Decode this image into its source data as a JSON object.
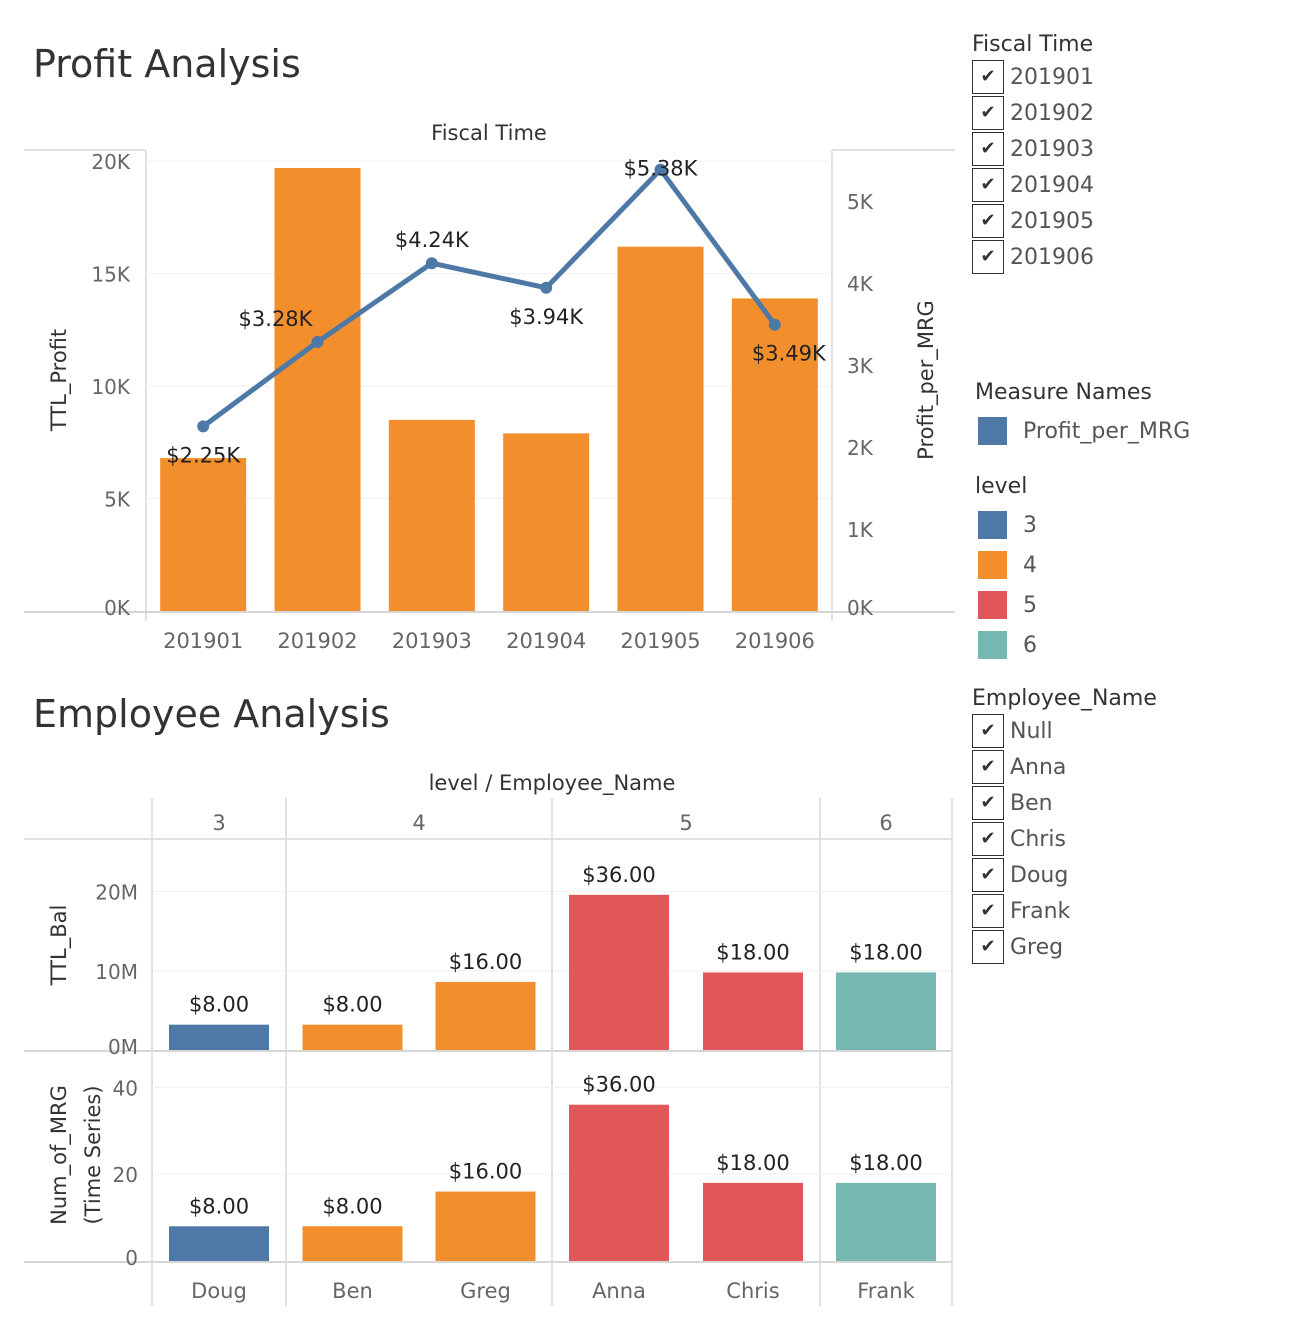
{
  "profit_section": {
    "title": "Profit Analysis",
    "header": "Fiscal Time"
  },
  "employee_section": {
    "title": "Employee Analysis",
    "header": "level / Employee_Name"
  },
  "fiscal_filter": {
    "title": "Fiscal Time",
    "items": [
      "201901",
      "201902",
      "201903",
      "201904",
      "201905",
      "201906"
    ]
  },
  "measure_legend": {
    "title": "Measure Names",
    "items": [
      {
        "label": "Profit_per_MRG",
        "color": "#4e79a7"
      }
    ]
  },
  "level_legend": {
    "title": "level",
    "items": [
      {
        "label": "3",
        "color": "#4e79a7"
      },
      {
        "label": "4",
        "color": "#f28e2b"
      },
      {
        "label": "5",
        "color": "#e15759"
      },
      {
        "label": "6",
        "color": "#76b7b2"
      }
    ]
  },
  "employee_filter": {
    "title": "Employee_Name",
    "items": [
      "Null",
      "Anna",
      "Ben",
      "Chris",
      "Doug",
      "Frank",
      "Greg"
    ]
  },
  "chart_data": [
    {
      "type": "bar",
      "title": "Profit Analysis",
      "xlabel": "Fiscal Time",
      "ylabel": "TTL_Profit",
      "categories": [
        "201901",
        "201902",
        "201903",
        "201904",
        "201905",
        "201906"
      ],
      "values": [
        6800,
        19700,
        8500,
        7900,
        16200,
        13900
      ],
      "ylim": [
        0,
        20500
      ],
      "yticks": [
        "0K",
        "5K",
        "10K",
        "15K",
        "20K"
      ],
      "color": "#f28e2b",
      "line_series": {
        "name": "Profit_per_MRG",
        "axis_label": "Profit_per_MRG",
        "values": [
          2250,
          3280,
          4240,
          3940,
          5380,
          3490
        ],
        "labels": [
          "$2.25K",
          "$3.28K",
          "$4.24K",
          "$3.94K",
          "$5.38K",
          "$3.49K"
        ],
        "ylim": [
          0,
          5620
        ],
        "yticks": [
          "0K",
          "1K",
          "2K",
          "3K",
          "4K",
          "5K"
        ],
        "color": "#4e79a7"
      },
      "grid": true
    },
    {
      "type": "bar",
      "title": "Employee Analysis",
      "xlabel": "level / Employee_Name",
      "groups": [
        {
          "level": "3",
          "employees": [
            "Doug"
          ]
        },
        {
          "level": "4",
          "employees": [
            "Ben",
            "Greg"
          ]
        },
        {
          "level": "5",
          "employees": [
            "Anna",
            "Chris"
          ]
        },
        {
          "level": "6",
          "employees": [
            "Frank"
          ]
        }
      ],
      "categories": [
        "Doug",
        "Ben",
        "Greg",
        "Anna",
        "Chris",
        "Frank"
      ],
      "levels": [
        "3",
        "4",
        "4",
        "5",
        "5",
        "6"
      ],
      "series": [
        {
          "name": "TTL_Bal",
          "axis_label": "TTL_Bal",
          "values": [
            3200000,
            3200000,
            8600000,
            19600000,
            9800000,
            9800000
          ],
          "labels": [
            "$8.00",
            "$8.00",
            "$16.00",
            "$36.00",
            "$18.00",
            "$18.00"
          ],
          "ylim": [
            0,
            24000000
          ],
          "ytick_values": [
            0,
            10000000,
            20000000
          ],
          "yticks": [
            "0M",
            "10M",
            "20M"
          ]
        },
        {
          "name": "Num_of_MRG (Time Series)",
          "axis_label": [
            "Num_of_MRG",
            "(Time Series)"
          ],
          "values": [
            8,
            8,
            16,
            36,
            18,
            18
          ],
          "labels": [
            "$8.00",
            "$8.00",
            "$16.00",
            "$36.00",
            "$18.00",
            "$18.00"
          ],
          "ylim": [
            0,
            44
          ],
          "ytick_values": [
            0,
            20,
            40
          ],
          "yticks": [
            "0",
            "20",
            "40"
          ]
        }
      ],
      "level_colors": {
        "3": "#4e79a7",
        "4": "#f28e2b",
        "5": "#e15759",
        "6": "#76b7b2"
      },
      "grid": true
    }
  ]
}
